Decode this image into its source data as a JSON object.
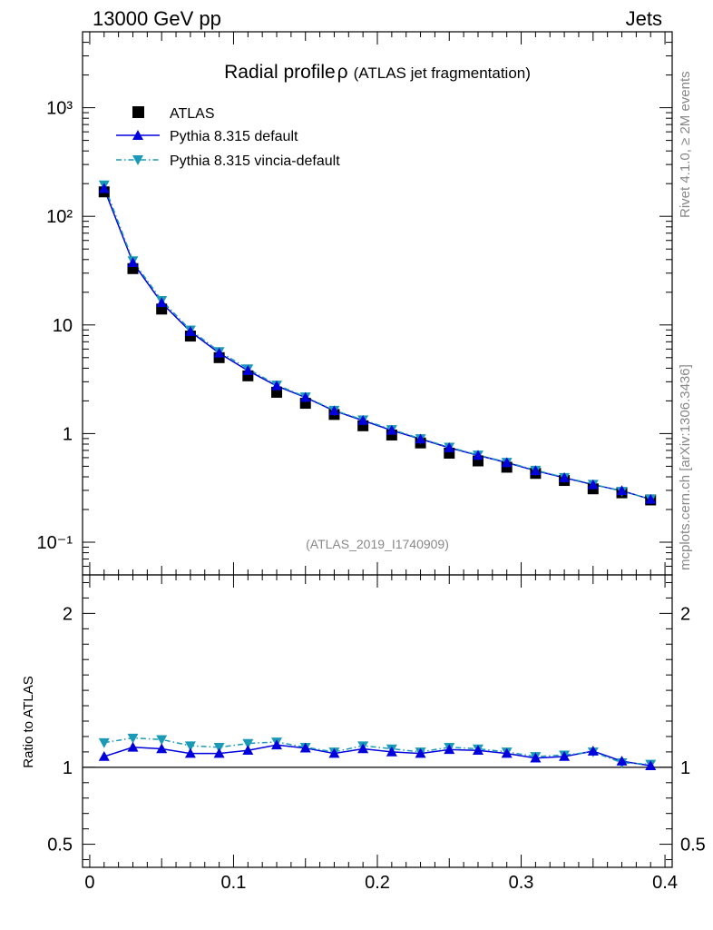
{
  "header": {
    "left": "13000 GeV pp",
    "right": "Jets"
  },
  "side_text": {
    "version": "Rivet 4.1.0, ≥ 2M events",
    "source": "mcplots.cern.ch [arXiv:1306.3436]"
  },
  "colors": {
    "atlas": "#000000",
    "pythia_default": "#0000dd",
    "vincia_default": "#1b9ab8",
    "watermark": "#888888"
  },
  "chart_data": [
    {
      "type": "scatter",
      "title": "Radial profile",
      "title_symbol": "ρ",
      "title_suffix": "(ATLAS jet fragmentation)",
      "watermark": "(ATLAS_2019_I1740909)",
      "yscale": "log",
      "ylim": [
        0.05,
        5000
      ],
      "xlim": [
        -0.005,
        0.405
      ],
      "ytick_labels": [
        "10⁻¹",
        "1",
        "10",
        "10²",
        "10³"
      ],
      "ytick_values": [
        0.1,
        1,
        10,
        100,
        1000
      ],
      "legend_position": "top-left",
      "x": [
        0.01,
        0.03,
        0.05,
        0.07,
        0.09,
        0.11,
        0.13,
        0.15,
        0.17,
        0.19,
        0.21,
        0.23,
        0.25,
        0.27,
        0.29,
        0.31,
        0.33,
        0.35,
        0.37,
        0.39
      ],
      "series": [
        {
          "name": "ATLAS",
          "marker": "square",
          "values": [
            168,
            33,
            14,
            7.9,
            5.0,
            3.4,
            2.4,
            1.9,
            1.5,
            1.18,
            0.97,
            0.82,
            0.66,
            0.56,
            0.49,
            0.43,
            0.37,
            0.31,
            0.285,
            0.245
          ]
        },
        {
          "name": "Pythia 8.315 default",
          "marker": "triangle-up",
          "line": "solid",
          "values": [
            180,
            37.5,
            16.0,
            8.7,
            5.5,
            3.8,
            2.75,
            2.15,
            1.62,
            1.32,
            1.07,
            0.89,
            0.74,
            0.63,
            0.54,
            0.455,
            0.392,
            0.338,
            0.298,
            0.248
          ]
        },
        {
          "name": "Pythia 8.315 vincia-default",
          "marker": "triangle-down",
          "line": "dashdot",
          "values": [
            195,
            39.0,
            16.8,
            9.0,
            5.7,
            3.95,
            2.8,
            2.18,
            1.64,
            1.34,
            1.09,
            0.9,
            0.75,
            0.635,
            0.545,
            0.46,
            0.395,
            0.342,
            0.294,
            0.25
          ]
        }
      ]
    },
    {
      "type": "scatter",
      "ylabel": "Ratio to ATLAS",
      "ylim": [
        0.35,
        2.25
      ],
      "xlim": [
        -0.005,
        0.405
      ],
      "ytick_labels": [
        "0.5",
        "1",
        "2"
      ],
      "ytick_values": [
        0.5,
        1,
        2
      ],
      "xtick_labels": [
        "0",
        "0.1",
        "0.2",
        "0.3",
        "0.4"
      ],
      "xtick_values": [
        0,
        0.1,
        0.2,
        0.3,
        0.4
      ],
      "reference_line": 1,
      "x": [
        0.01,
        0.03,
        0.05,
        0.07,
        0.09,
        0.11,
        0.13,
        0.15,
        0.17,
        0.19,
        0.21,
        0.23,
        0.25,
        0.27,
        0.29,
        0.31,
        0.33,
        0.35,
        0.37,
        0.39
      ],
      "series": [
        {
          "name": "Pythia 8.315 default",
          "values": [
            1.07,
            1.13,
            1.12,
            1.09,
            1.09,
            1.11,
            1.145,
            1.125,
            1.09,
            1.12,
            1.1,
            1.09,
            1.115,
            1.11,
            1.09,
            1.06,
            1.07,
            1.105,
            1.04,
            1.01
          ]
        },
        {
          "name": "Pythia 8.315 vincia-default",
          "values": [
            1.16,
            1.19,
            1.18,
            1.14,
            1.13,
            1.155,
            1.165,
            1.13,
            1.1,
            1.14,
            1.12,
            1.1,
            1.13,
            1.12,
            1.1,
            1.07,
            1.08,
            1.1,
            1.03,
            1.02
          ]
        }
      ]
    }
  ]
}
